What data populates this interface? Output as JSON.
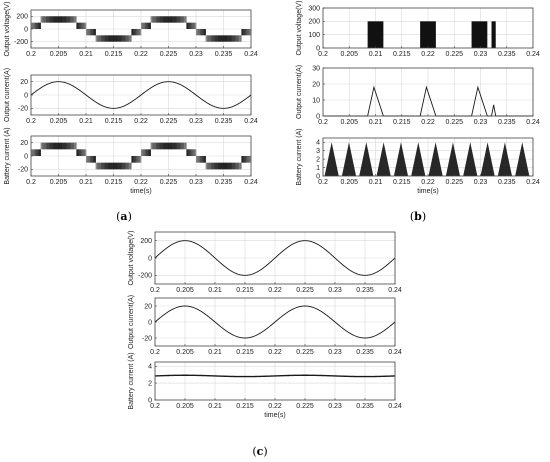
{
  "captions": [
    {
      "open": "(",
      "letter": "a",
      "close": ")"
    },
    {
      "open": "(",
      "letter": "b",
      "close": ")"
    },
    {
      "open": "(",
      "letter": "c",
      "close": ")"
    }
  ],
  "colors": {
    "trace": "#1a1a1a",
    "pulse": "#111111",
    "grid": "#d9d9d9",
    "axis": "#444444"
  },
  "chart_data": [
    {
      "id": "a1",
      "type": "line",
      "group": "a",
      "ylabel": "Output voltage(V)",
      "xlabel": "",
      "xlim": [
        0.2,
        0.24
      ],
      "ylim": [
        -300,
        300
      ],
      "yticks": [
        200,
        0,
        -200
      ],
      "xticks": [
        "0.2",
        "0.205",
        "0.21",
        "0.215",
        "0.22",
        "0.225",
        "0.23",
        "0.235",
        "0.24"
      ],
      "grid": true,
      "series": [
        {
          "kind": "pwm_sine",
          "amplitude": 200,
          "frequency_hz": 50,
          "steps": [
            0,
            100,
            200
          ]
        }
      ]
    },
    {
      "id": "a2",
      "type": "line",
      "group": "a",
      "ylabel": "Output current(A)",
      "xlabel": "",
      "xlim": [
        0.2,
        0.24
      ],
      "ylim": [
        -30,
        30
      ],
      "yticks": [
        20,
        0,
        -20
      ],
      "xticks": [
        "0.2",
        "0.205",
        "0.21",
        "0.215",
        "0.22",
        "0.225",
        "0.23",
        "0.235",
        "0.24"
      ],
      "grid": true,
      "series": [
        {
          "kind": "sine",
          "amplitude": 20,
          "frequency_hz": 50
        }
      ]
    },
    {
      "id": "a3",
      "type": "line",
      "group": "a",
      "ylabel": "Battery current (A)",
      "xlabel": "time(s)",
      "xlim": [
        0.2,
        0.24
      ],
      "ylim": [
        -30,
        30
      ],
      "yticks": [
        20,
        0,
        -20
      ],
      "xticks": [
        "0.2",
        "0.205",
        "0.21",
        "0.215",
        "0.22",
        "0.225",
        "0.23",
        "0.235",
        "0.24"
      ],
      "grid": true,
      "series": [
        {
          "kind": "pwm_sine",
          "amplitude": 20,
          "frequency_hz": 50,
          "steps": [
            0,
            10,
            20
          ]
        }
      ]
    },
    {
      "id": "b1",
      "type": "bar",
      "group": "b",
      "ylabel": "Output voltage(V)",
      "xlabel": "",
      "xlim": [
        0.2,
        0.24
      ],
      "ylim": [
        0,
        300
      ],
      "yticks": [
        300,
        200,
        100,
        0
      ],
      "xticks": [
        "0.2",
        "0.205",
        "0.21",
        "0.215",
        "0.22",
        "0.225",
        "0.23",
        "0.235",
        "0.24"
      ],
      "grid": true,
      "series": [
        {
          "kind": "pulses",
          "height": 200,
          "intervals": [
            [
              0.2085,
              0.2115
            ],
            [
              0.2185,
              0.2215
            ],
            [
              0.2283,
              0.2313
            ],
            [
              0.2321,
              0.2329
            ]
          ]
        }
      ]
    },
    {
      "id": "b2",
      "type": "line",
      "group": "b",
      "ylabel": "Output current(A)",
      "xlabel": "",
      "xlim": [
        0.2,
        0.24
      ],
      "ylim": [
        0,
        30
      ],
      "yticks": [
        30,
        20,
        10,
        0
      ],
      "xticks": [
        "0.2",
        "0.205",
        "0.21",
        "0.215",
        "0.22",
        "0.225",
        "0.23",
        "0.235",
        "0.24"
      ],
      "grid": true,
      "series": [
        {
          "kind": "triangles",
          "points": [
            [
              0.2085,
              0
            ],
            [
              0.2097,
              18
            ],
            [
              0.2115,
              0
            ],
            [
              0.2185,
              0
            ],
            [
              0.2197,
              18
            ],
            [
              0.2215,
              0
            ],
            [
              0.2283,
              0
            ],
            [
              0.2295,
              18
            ],
            [
              0.2313,
              0
            ],
            [
              0.2321,
              0
            ],
            [
              0.2325,
              7
            ],
            [
              0.2329,
              0
            ]
          ]
        }
      ]
    },
    {
      "id": "b3",
      "type": "area",
      "group": "b",
      "ylabel": "Battery current (A)",
      "xlabel": "time(s)",
      "xlim": [
        0.2,
        0.24
      ],
      "ylim": [
        0,
        4.5
      ],
      "yticks": [
        4,
        3,
        2,
        1,
        0
      ],
      "xticks": [
        "0.2",
        "0.205",
        "0.21",
        "0.215",
        "0.22",
        "0.225",
        "0.23",
        "0.235",
        "0.24"
      ],
      "grid": true,
      "series": [
        {
          "kind": "triangle_bursts",
          "count": 12,
          "peak": 4,
          "period": 0.0033
        }
      ]
    },
    {
      "id": "c1",
      "type": "line",
      "group": "c",
      "ylabel": "Output voltage(V)",
      "xlabel": "",
      "xlim": [
        0.2,
        0.24
      ],
      "ylim": [
        -300,
        300
      ],
      "yticks": [
        200,
        0,
        -200
      ],
      "xticks": [
        "0.2",
        "0.205",
        "0.21",
        "0.215",
        "0.22",
        "0.225",
        "0.23",
        "0.235",
        "0.24"
      ],
      "grid": true,
      "series": [
        {
          "kind": "sine",
          "amplitude": 200,
          "frequency_hz": 50
        }
      ]
    },
    {
      "id": "c2",
      "type": "line",
      "group": "c",
      "ylabel": "Output current(A)",
      "xlabel": "",
      "xlim": [
        0.2,
        0.24
      ],
      "ylim": [
        -30,
        30
      ],
      "yticks": [
        20,
        0,
        -20
      ],
      "xticks": [
        "0.2",
        "0.205",
        "0.21",
        "0.215",
        "0.22",
        "0.225",
        "0.23",
        "0.235",
        "0.24"
      ],
      "grid": true,
      "series": [
        {
          "kind": "sine",
          "amplitude": 20,
          "frequency_hz": 50
        }
      ]
    },
    {
      "id": "c3",
      "type": "line",
      "group": "c",
      "ylabel": "Battery current (A)",
      "xlabel": "time(s)",
      "xlim": [
        0.2,
        0.24
      ],
      "ylim": [
        0,
        4.5
      ],
      "yticks": [
        4,
        2,
        0
      ],
      "xticks": [
        "0.2",
        "0.205",
        "0.21",
        "0.215",
        "0.22",
        "0.225",
        "0.23",
        "0.235",
        "0.24"
      ],
      "grid": true,
      "series": [
        {
          "kind": "constant",
          "value": 2.85,
          "ripple": 0.08
        }
      ]
    }
  ]
}
